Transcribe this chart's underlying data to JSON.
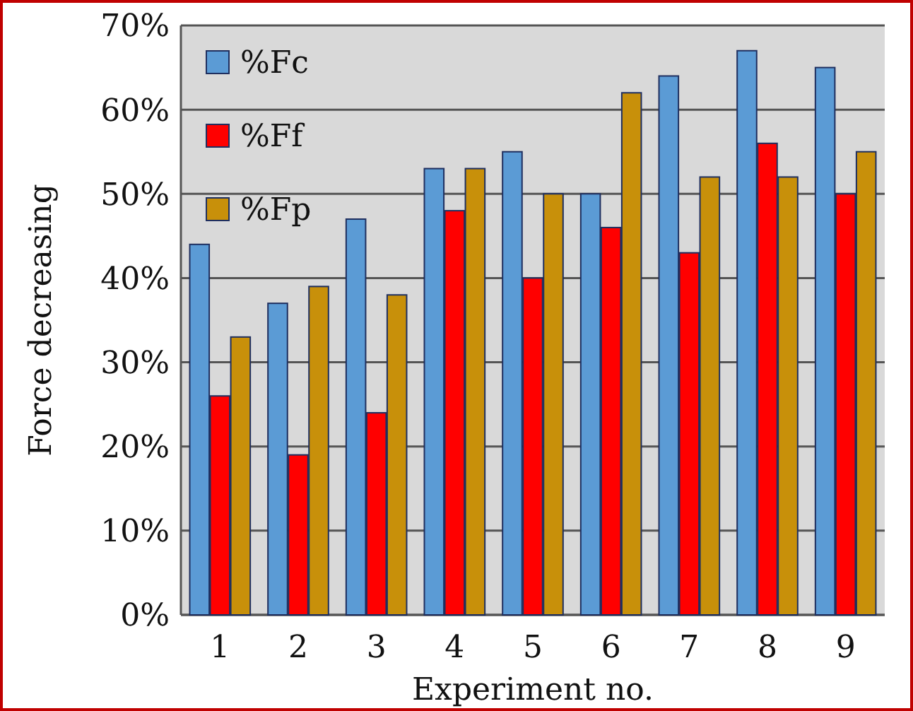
{
  "chart_data": {
    "type": "bar",
    "xlabel": "Experiment no.",
    "ylabel": "Force decreasing",
    "categories": [
      "1",
      "2",
      "3",
      "4",
      "5",
      "6",
      "7",
      "8",
      "9"
    ],
    "series": [
      {
        "name": "%Fc",
        "color": "#5b9bd5",
        "values": [
          44,
          37,
          47,
          53,
          55,
          50,
          64,
          67,
          65
        ]
      },
      {
        "name": "%Ff",
        "color": "#ff0000",
        "values": [
          26,
          19,
          24,
          48,
          40,
          46,
          43,
          56,
          50
        ]
      },
      {
        "name": "%Fp",
        "color": "#c8900a",
        "values": [
          33,
          39,
          38,
          53,
          50,
          62,
          52,
          52,
          55
        ]
      }
    ],
    "ylim": [
      0,
      70
    ],
    "yticks": [
      {
        "value": 0,
        "label": "0%"
      },
      {
        "value": 10,
        "label": "10%"
      },
      {
        "value": 20,
        "label": "20%"
      },
      {
        "value": 30,
        "label": "30%"
      },
      {
        "value": 40,
        "label": "40%"
      },
      {
        "value": 50,
        "label": "50%"
      },
      {
        "value": 60,
        "label": "60%"
      },
      {
        "value": 70,
        "label": "70%"
      }
    ],
    "grid": "y",
    "legend": "top left"
  }
}
